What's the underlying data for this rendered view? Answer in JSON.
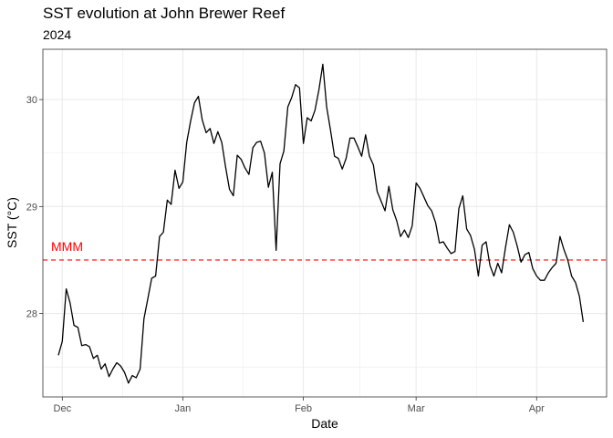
{
  "chart_data": {
    "type": "line",
    "title": "SST evolution at John Brewer Reef",
    "subtitle": "2024",
    "xlabel": "Date",
    "ylabel": "SST (°C)",
    "x_start": "2023-11-30",
    "x_end": "2024-04-15",
    "xlim": [
      "2023-11-26",
      "2024-04-19"
    ],
    "ylim": [
      27.22,
      30.47
    ],
    "x_ticks": [
      {
        "label": "Dec",
        "date": "2023-12-01"
      },
      {
        "label": "Jan",
        "date": "2024-01-01"
      },
      {
        "label": "Feb",
        "date": "2024-02-01"
      },
      {
        "label": "Mar",
        "date": "2024-03-01"
      },
      {
        "label": "Apr",
        "date": "2024-04-01"
      }
    ],
    "y_ticks": [
      {
        "label": "28",
        "value": 28
      },
      {
        "label": "29",
        "value": 29
      },
      {
        "label": "30",
        "value": 30
      }
    ],
    "grid": true,
    "reference_line": {
      "label": "MMM",
      "value": 28.5,
      "color": "#ff0000",
      "style": "dashed"
    },
    "series": [
      {
        "color": "#000000",
        "values": [
          27.61,
          27.74,
          28.23,
          28.1,
          27.89,
          27.87,
          27.7,
          27.71,
          27.69,
          27.58,
          27.61,
          27.48,
          27.53,
          27.41,
          27.48,
          27.54,
          27.51,
          27.45,
          27.35,
          27.42,
          27.4,
          27.48,
          27.95,
          28.14,
          28.33,
          28.35,
          28.72,
          28.76,
          29.06,
          29.02,
          29.34,
          29.17,
          29.23,
          29.6,
          29.8,
          29.97,
          30.03,
          29.81,
          29.69,
          29.73,
          29.59,
          29.7,
          29.6,
          29.37,
          29.16,
          29.1,
          29.48,
          29.44,
          29.36,
          29.3,
          29.55,
          29.6,
          29.61,
          29.5,
          29.18,
          29.32,
          28.59,
          29.4,
          29.52,
          29.93,
          30.02,
          30.14,
          30.11,
          29.59,
          29.83,
          29.8,
          29.9,
          30.09,
          30.33,
          29.93,
          29.71,
          29.47,
          29.45,
          29.35,
          29.45,
          29.64,
          29.64,
          29.56,
          29.47,
          29.67,
          29.47,
          29.39,
          29.14,
          29.05,
          28.96,
          29.19,
          28.97,
          28.87,
          28.72,
          28.78,
          28.71,
          28.82,
          29.22,
          29.17,
          29.09,
          29.01,
          28.96,
          28.85,
          28.66,
          28.67,
          28.61,
          28.56,
          28.58,
          28.98,
          29.1,
          28.79,
          28.73,
          28.6,
          28.35,
          28.64,
          28.67,
          28.45,
          28.35,
          28.47,
          28.38,
          28.62,
          28.83,
          28.76,
          28.63,
          28.48,
          28.55,
          28.57,
          28.42,
          28.35,
          28.31,
          28.31,
          28.38,
          28.43,
          28.47,
          28.72,
          28.6,
          28.5,
          28.35,
          28.29,
          28.16,
          27.92
        ]
      }
    ]
  }
}
